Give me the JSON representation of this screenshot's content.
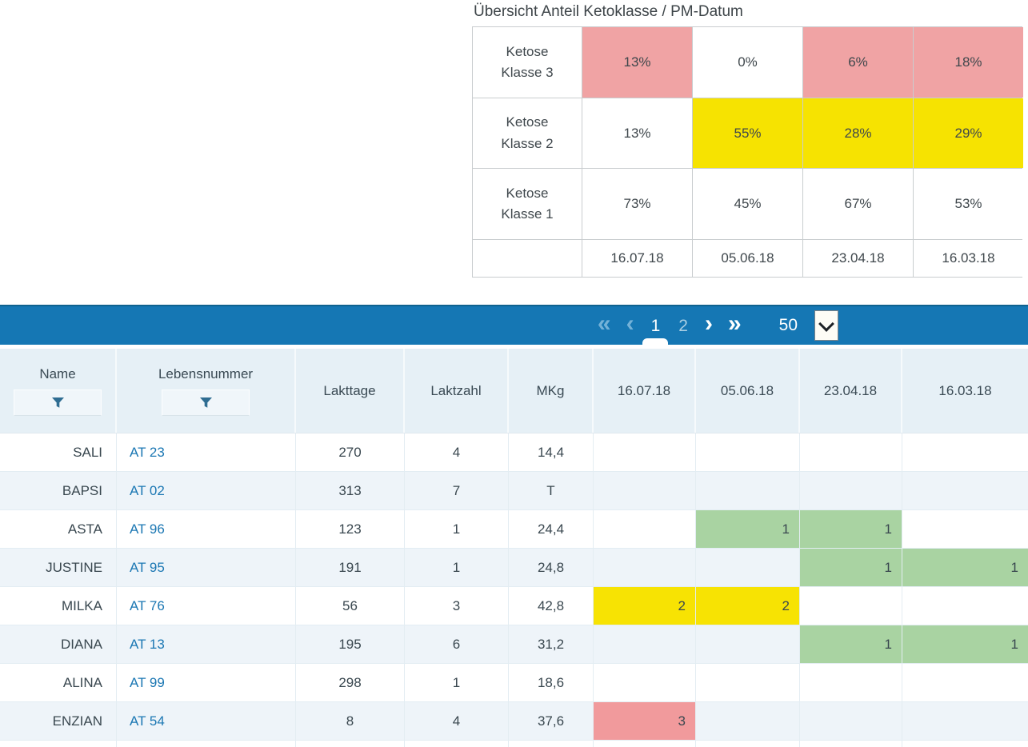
{
  "summary": {
    "title": "Übersicht Anteil Ketoklasse / PM-Datum",
    "rows": [
      {
        "label": "Ketose Klasse 3",
        "cells": [
          {
            "value": "13%",
            "bg": "red"
          },
          {
            "value": "0%",
            "bg": "none"
          },
          {
            "value": "6%",
            "bg": "red"
          },
          {
            "value": "18%",
            "bg": "red"
          }
        ]
      },
      {
        "label": "Ketose Klasse 2",
        "cells": [
          {
            "value": "13%",
            "bg": "none"
          },
          {
            "value": "55%",
            "bg": "yellow"
          },
          {
            "value": "28%",
            "bg": "yellow"
          },
          {
            "value": "29%",
            "bg": "yellow"
          }
        ]
      },
      {
        "label": "Ketose Klasse 1",
        "cells": [
          {
            "value": "73%",
            "bg": "none"
          },
          {
            "value": "45%",
            "bg": "none"
          },
          {
            "value": "67%",
            "bg": "none"
          },
          {
            "value": "53%",
            "bg": "none"
          }
        ]
      }
    ],
    "footer_dates": [
      "16.07.18",
      "05.06.18",
      "23.04.18",
      "16.03.18"
    ]
  },
  "pagination": {
    "first": "«",
    "prev": "‹",
    "pages": [
      "1",
      "2"
    ],
    "current_page": "1",
    "next": "›",
    "last": "»",
    "page_size": "50"
  },
  "table": {
    "columns": [
      {
        "label": "Name",
        "filter": true
      },
      {
        "label": "Lebensnummer",
        "filter": true
      },
      {
        "label": "Lakttage",
        "filter": false
      },
      {
        "label": "Laktzahl",
        "filter": false
      },
      {
        "label": "MKg",
        "filter": false
      },
      {
        "label": "16.07.18",
        "filter": false
      },
      {
        "label": "05.06.18",
        "filter": false
      },
      {
        "label": "23.04.18",
        "filter": false
      },
      {
        "label": "16.03.18",
        "filter": false
      }
    ],
    "rows": [
      {
        "name": "SALI",
        "lebensnummer": "AT 23",
        "lakttage": "270",
        "laktzahl": "4",
        "mkg": "14,4",
        "dates": [
          null,
          null,
          null,
          null
        ]
      },
      {
        "name": "BAPSI",
        "lebensnummer": "AT 02",
        "lakttage": "313",
        "laktzahl": "7",
        "mkg": "T",
        "dates": [
          null,
          null,
          null,
          null
        ]
      },
      {
        "name": "ASTA",
        "lebensnummer": "AT 96",
        "lakttage": "123",
        "laktzahl": "1",
        "mkg": "24,4",
        "dates": [
          null,
          {
            "value": "1",
            "color": "green"
          },
          {
            "value": "1",
            "color": "green"
          },
          null
        ]
      },
      {
        "name": "JUSTINE",
        "lebensnummer": "AT 95",
        "lakttage": "191",
        "laktzahl": "1",
        "mkg": "24,8",
        "dates": [
          null,
          null,
          {
            "value": "1",
            "color": "green"
          },
          {
            "value": "1",
            "color": "green"
          }
        ]
      },
      {
        "name": "MILKA",
        "lebensnummer": "AT 76",
        "lakttage": "56",
        "laktzahl": "3",
        "mkg": "42,8",
        "dates": [
          {
            "value": "2",
            "color": "yellow"
          },
          {
            "value": "2",
            "color": "yellow"
          },
          null,
          null
        ]
      },
      {
        "name": "DIANA",
        "lebensnummer": "AT 13",
        "lakttage": "195",
        "laktzahl": "6",
        "mkg": "31,2",
        "dates": [
          null,
          null,
          {
            "value": "1",
            "color": "green"
          },
          {
            "value": "1",
            "color": "green"
          }
        ]
      },
      {
        "name": "ALINA",
        "lebensnummer": "AT 99",
        "lakttage": "298",
        "laktzahl": "1",
        "mkg": "18,6",
        "dates": [
          null,
          null,
          null,
          null
        ]
      },
      {
        "name": "ENZIAN",
        "lebensnummer": "AT 54",
        "lakttage": "8",
        "laktzahl": "4",
        "mkg": "37,6",
        "dates": [
          {
            "value": "3",
            "color": "red"
          },
          null,
          null,
          null
        ]
      }
    ]
  },
  "icons": {
    "filter": "funnel-icon",
    "page_size": "chevron-down-icon"
  },
  "colors": {
    "bar_blue": "#1577b4",
    "header_bg": "#e6f0f6",
    "row_alt_bg": "#eef4f9",
    "link_blue": "#1b77b3",
    "text": "#37474f",
    "green": "#a9d3a2",
    "yellow": "#f7e303",
    "red": "#f19a9c",
    "summary_yellow": "#f6e301",
    "summary_red": "#f0a3a4"
  }
}
